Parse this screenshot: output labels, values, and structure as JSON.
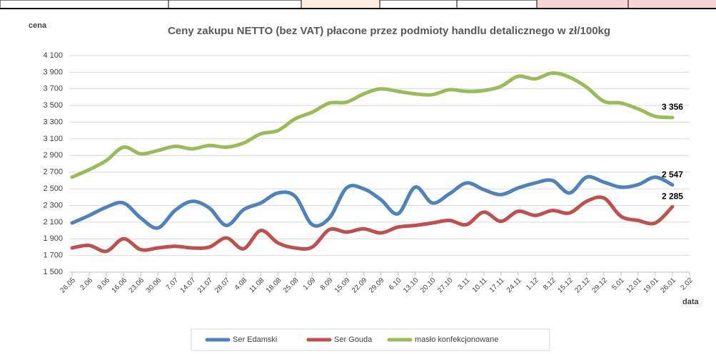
{
  "chart_data": {
    "type": "line",
    "title": "Ceny zakupu NETTO (bez VAT) płacone przez podmioty handlu detalicznego w zł/100kg",
    "y_label": "cena",
    "x_label": "data",
    "categories": [
      "26.05",
      "2.06",
      "9.06",
      "16.06",
      "23.06",
      "30.06",
      "7.07",
      "14.07",
      "21.07",
      "28.07",
      "4.08",
      "11.08",
      "18.08",
      "25.08",
      "1.09",
      "8.09",
      "15.09",
      "22.09",
      "29.09",
      "6.10",
      "13.10",
      "20.10",
      "27.10",
      "3.11",
      "10.11",
      "17.11",
      "24.11",
      "1.12",
      "8.12",
      "15.12",
      "22.12",
      "29.12",
      "5.01",
      "12.01",
      "19.01",
      "26.01",
      "2.02"
    ],
    "series": [
      {
        "name": "Ser Edamski",
        "color": "#4f81bd",
        "values": [
          2090,
          2180,
          2280,
          2330,
          2150,
          2030,
          2240,
          2350,
          2270,
          2060,
          2250,
          2330,
          2450,
          2410,
          2070,
          2150,
          2510,
          2500,
          2370,
          2200,
          2520,
          2330,
          2440,
          2570,
          2490,
          2430,
          2510,
          2570,
          2600,
          2450,
          2640,
          2580,
          2520,
          2550,
          2640,
          2547,
          null
        ],
        "value_labels": [
          null,
          null,
          null,
          null,
          null,
          null,
          null,
          null,
          null,
          null,
          null,
          null,
          null,
          null,
          null,
          null,
          null,
          null,
          null,
          null,
          null,
          null,
          null,
          null,
          null,
          null,
          null,
          null,
          null,
          null,
          null,
          null,
          null,
          null,
          null,
          "2 547",
          null
        ]
      },
      {
        "name": "Ser Gouda",
        "color": "#c0504d",
        "values": [
          1790,
          1820,
          1750,
          1900,
          1770,
          1790,
          1810,
          1790,
          1800,
          1910,
          1780,
          2000,
          1850,
          1790,
          1800,
          2010,
          1980,
          2020,
          1970,
          2040,
          2060,
          2090,
          2120,
          2070,
          2220,
          2110,
          2230,
          2180,
          2240,
          2210,
          2350,
          2390,
          2170,
          2120,
          2090,
          2285,
          null
        ],
        "value_labels": [
          null,
          null,
          null,
          null,
          null,
          null,
          null,
          null,
          null,
          null,
          null,
          null,
          null,
          null,
          null,
          null,
          null,
          null,
          null,
          null,
          null,
          null,
          null,
          null,
          null,
          null,
          null,
          null,
          null,
          null,
          null,
          null,
          null,
          null,
          null,
          "2 285",
          null
        ]
      },
      {
        "name": "masło konfekcjonowane",
        "color": "#9bbb59",
        "values": [
          2640,
          2730,
          2840,
          3000,
          2920,
          2960,
          3010,
          2980,
          3020,
          3000,
          3050,
          3160,
          3200,
          3340,
          3420,
          3530,
          3540,
          3640,
          3700,
          3670,
          3640,
          3630,
          3690,
          3670,
          3680,
          3730,
          3850,
          3820,
          3890,
          3840,
          3720,
          3550,
          3530,
          3460,
          3370,
          3356,
          null
        ],
        "value_labels": [
          null,
          null,
          null,
          null,
          null,
          null,
          null,
          null,
          null,
          null,
          null,
          null,
          null,
          null,
          null,
          null,
          null,
          null,
          null,
          null,
          null,
          null,
          null,
          null,
          null,
          null,
          null,
          null,
          null,
          null,
          null,
          null,
          null,
          null,
          null,
          "3 356",
          null
        ]
      }
    ],
    "ylim": [
      1500,
      4100
    ],
    "yticks": [
      {
        "value": 1500,
        "label": "1 500"
      },
      {
        "value": 1700,
        "label": "1 700"
      },
      {
        "value": 1900,
        "label": "1 900"
      },
      {
        "value": 2100,
        "label": "2 100"
      },
      {
        "value": 2300,
        "label": "2 300"
      },
      {
        "value": 2500,
        "label": "2 500"
      },
      {
        "value": 2700,
        "label": "2 700"
      },
      {
        "value": 2900,
        "label": "2 900"
      },
      {
        "value": 3100,
        "label": "3 100"
      },
      {
        "value": 3300,
        "label": "3 300"
      },
      {
        "value": 3500,
        "label": "3 500"
      },
      {
        "value": 3700,
        "label": "3 700"
      },
      {
        "value": 3900,
        "label": "3 900"
      },
      {
        "value": 4100,
        "label": "4 100"
      }
    ],
    "grid": true,
    "smooth": true,
    "legend": "bottom"
  }
}
